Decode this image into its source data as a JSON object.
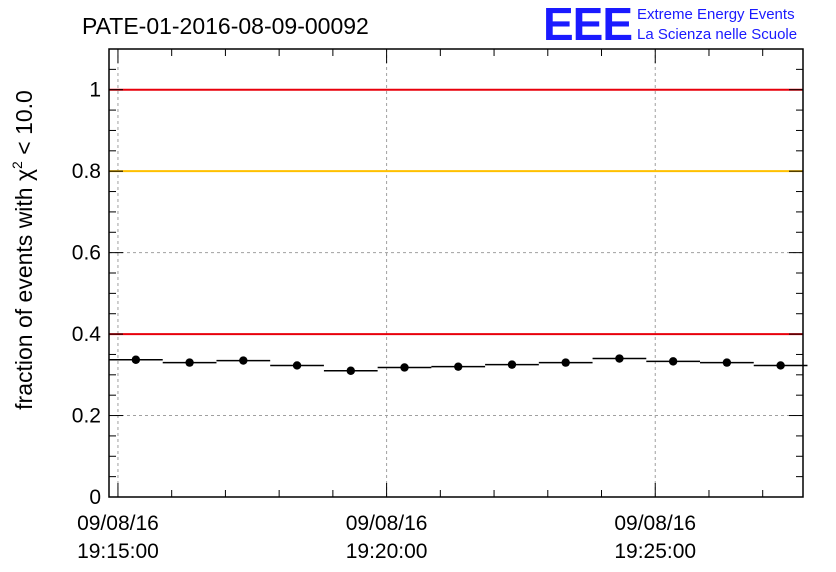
{
  "header": {
    "title": "PATE-01-2016-08-09-00092",
    "logo": {
      "mark": "EEE",
      "line1": "Extreme Energy Events",
      "line2": "La Scienza nelle Scuole",
      "color": "#1a1aff"
    }
  },
  "chart_data": {
    "type": "scatter",
    "ylabel_main": "fraction of events with ",
    "ylabel_chi": "χ",
    "ylabel_sup": "2",
    "ylabel_tail": " < 10.0",
    "xlabel": "",
    "xlim": [
      "19:14:50",
      "19:27:45"
    ],
    "ylim": [
      0,
      1.1
    ],
    "grid": true,
    "yticks": [
      {
        "value": 0,
        "label": "0"
      },
      {
        "value": 0.2,
        "label": "0.2"
      },
      {
        "value": 0.4,
        "label": "0.4"
      },
      {
        "value": 0.6,
        "label": "0.6"
      },
      {
        "value": 0.8,
        "label": "0.8"
      },
      {
        "value": 1,
        "label": "1"
      }
    ],
    "xticks": [
      {
        "time": "19:15:00",
        "date": "09/08/16",
        "clock": "19:15:00"
      },
      {
        "time": "19:20:00",
        "date": "09/08/16",
        "clock": "19:20:00"
      },
      {
        "time": "19:25:00",
        "date": "09/08/16",
        "clock": "19:25:00"
      }
    ],
    "reference_lines": [
      {
        "y": 1.0,
        "color": "#e8000b"
      },
      {
        "y": 0.8,
        "color": "#ffc000"
      },
      {
        "y": 0.4,
        "color": "#e8000b"
      }
    ],
    "bin_width_seconds": 60,
    "points": [
      {
        "x": "19:15:20",
        "y": 0.337
      },
      {
        "x": "19:16:20",
        "y": 0.33
      },
      {
        "x": "19:17:20",
        "y": 0.335
      },
      {
        "x": "19:18:20",
        "y": 0.323
      },
      {
        "x": "19:19:20",
        "y": 0.31
      },
      {
        "x": "19:20:20",
        "y": 0.318
      },
      {
        "x": "19:21:20",
        "y": 0.32
      },
      {
        "x": "19:22:20",
        "y": 0.325
      },
      {
        "x": "19:23:20",
        "y": 0.33
      },
      {
        "x": "19:24:20",
        "y": 0.34
      },
      {
        "x": "19:25:20",
        "y": 0.333
      },
      {
        "x": "19:26:20",
        "y": 0.33
      },
      {
        "x": "19:27:20",
        "y": 0.323
      }
    ]
  }
}
